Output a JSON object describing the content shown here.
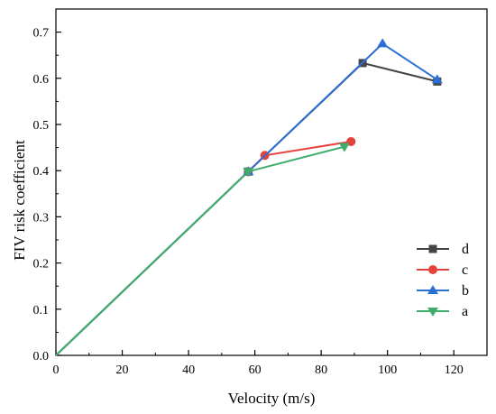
{
  "chart_data": {
    "type": "line",
    "title": "",
    "xlabel": "Velocity (m/s)",
    "ylabel": "FIV risk coefficient",
    "xlim": [
      0,
      130
    ],
    "ylim": [
      0,
      0.75
    ],
    "xticks": [
      0,
      20,
      40,
      60,
      80,
      100,
      120
    ],
    "yticks": [
      0.0,
      0.1,
      0.2,
      0.3,
      0.4,
      0.5,
      0.6,
      0.7
    ],
    "xtick_labels": [
      "0",
      "20",
      "40",
      "60",
      "80",
      "100",
      "120"
    ],
    "ytick_labels": [
      "0.0",
      "0.1",
      "0.2",
      "0.3",
      "0.4",
      "0.5",
      "0.6",
      "0.7"
    ],
    "grid": false,
    "legend_position": "right",
    "series": [
      {
        "name": "d",
        "color": "#444444",
        "marker": "square",
        "points": [
          [
            0,
            0
          ],
          [
            58,
            0.398
          ],
          [
            92.5,
            0.633
          ],
          [
            115,
            0.593
          ]
        ]
      },
      {
        "name": "c",
        "color": "#e8413c",
        "marker": "circle",
        "points": [
          [
            0,
            0
          ],
          [
            58,
            0.398
          ],
          [
            63,
            0.433
          ],
          [
            89,
            0.463
          ]
        ]
      },
      {
        "name": "b",
        "color": "#2a6fd6",
        "marker": "triangle-up",
        "points": [
          [
            0,
            0
          ],
          [
            58,
            0.398
          ],
          [
            98.5,
            0.675
          ],
          [
            115,
            0.597
          ]
        ]
      },
      {
        "name": "a",
        "color": "#3fae6a",
        "marker": "triangle-down",
        "points": [
          [
            0,
            0
          ],
          [
            58,
            0.398
          ],
          [
            87,
            0.452
          ]
        ]
      }
    ]
  }
}
